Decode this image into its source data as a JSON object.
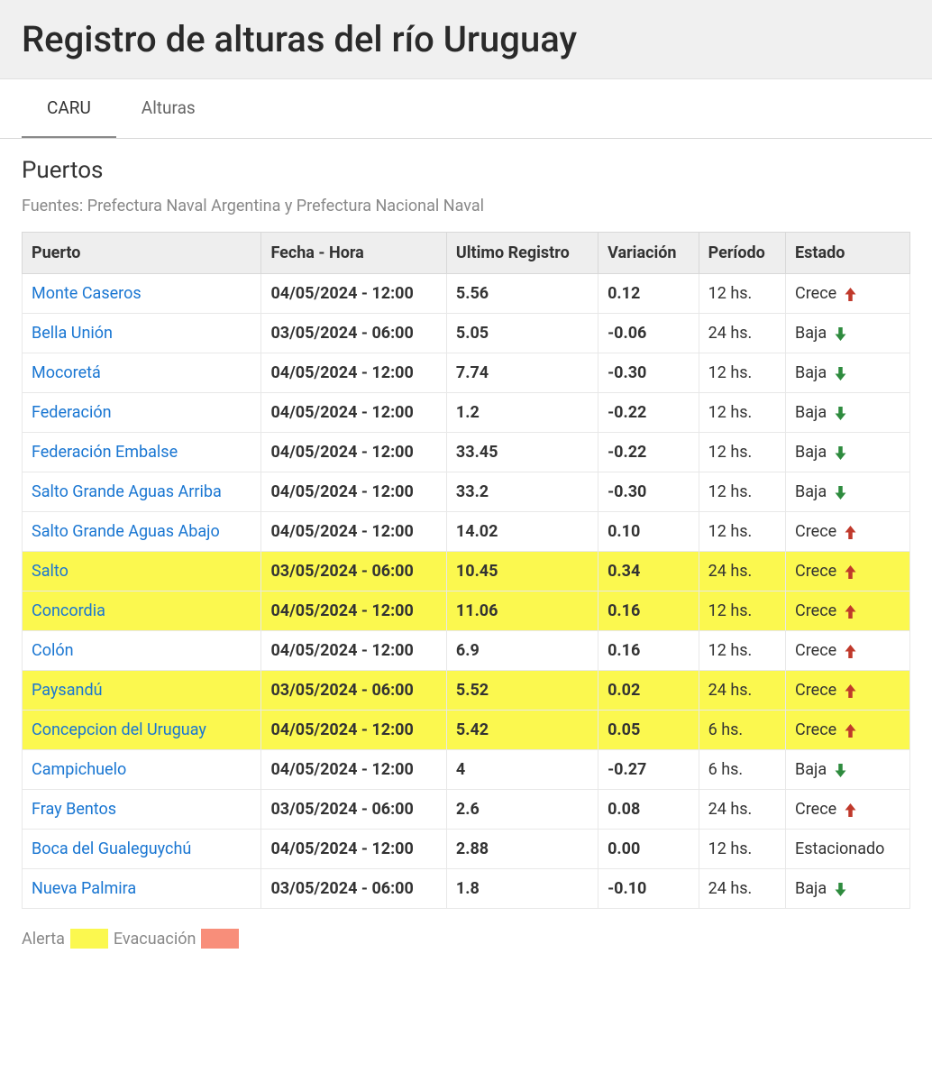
{
  "header": {
    "title": "Registro de alturas del río Uruguay"
  },
  "tabs": [
    {
      "label": "CARU",
      "active": true
    },
    {
      "label": "Alturas",
      "active": false
    }
  ],
  "section": {
    "title": "Puertos",
    "sources": "Fuentes: Prefectura Naval Argentina y Prefectura Nacional Naval"
  },
  "columns": [
    "Puerto",
    "Fecha - Hora",
    "Ultimo Registro",
    "Variación",
    "Período",
    "Estado"
  ],
  "estados": {
    "crece": {
      "label": "Crece",
      "icon": "arrow-up",
      "color": "#c0392b"
    },
    "baja": {
      "label": "Baja",
      "icon": "arrow-down",
      "color": "#2e8b3e"
    },
    "estacionado": {
      "label": "Estacionado",
      "icon": "",
      "color": ""
    }
  },
  "rows": [
    {
      "puerto": "Monte Caseros",
      "fecha": "04/05/2024 - 12:00",
      "registro": "5.56",
      "variacion": "0.12",
      "periodo": "12 hs.",
      "estado": "crece",
      "status": ""
    },
    {
      "puerto": "Bella Unión",
      "fecha": "03/05/2024 - 06:00",
      "registro": "5.05",
      "variacion": "-0.06",
      "periodo": "24 hs.",
      "estado": "baja",
      "status": ""
    },
    {
      "puerto": "Mocoretá",
      "fecha": "04/05/2024 - 12:00",
      "registro": "7.74",
      "variacion": "-0.30",
      "periodo": "12 hs.",
      "estado": "baja",
      "status": ""
    },
    {
      "puerto": "Federación",
      "fecha": "04/05/2024 - 12:00",
      "registro": "1.2",
      "variacion": "-0.22",
      "periodo": "12 hs.",
      "estado": "baja",
      "status": ""
    },
    {
      "puerto": "Federación Embalse",
      "fecha": "04/05/2024 - 12:00",
      "registro": "33.45",
      "variacion": "-0.22",
      "periodo": "12 hs.",
      "estado": "baja",
      "status": ""
    },
    {
      "puerto": "Salto Grande Aguas Arriba",
      "fecha": "04/05/2024 - 12:00",
      "registro": "33.2",
      "variacion": "-0.30",
      "periodo": "12 hs.",
      "estado": "baja",
      "status": ""
    },
    {
      "puerto": "Salto Grande Aguas Abajo",
      "fecha": "04/05/2024 - 12:00",
      "registro": "14.02",
      "variacion": "0.10",
      "periodo": "12 hs.",
      "estado": "crece",
      "status": ""
    },
    {
      "puerto": "Salto",
      "fecha": "03/05/2024 - 06:00",
      "registro": "10.45",
      "variacion": "0.34",
      "periodo": "24 hs.",
      "estado": "crece",
      "status": "alert"
    },
    {
      "puerto": "Concordia",
      "fecha": "04/05/2024 - 12:00",
      "registro": "11.06",
      "variacion": "0.16",
      "periodo": "12 hs.",
      "estado": "crece",
      "status": "alert"
    },
    {
      "puerto": "Colón",
      "fecha": "04/05/2024 - 12:00",
      "registro": "6.9",
      "variacion": "0.16",
      "periodo": "12 hs.",
      "estado": "crece",
      "status": ""
    },
    {
      "puerto": "Paysandú",
      "fecha": "03/05/2024 - 06:00",
      "registro": "5.52",
      "variacion": "0.02",
      "periodo": "24 hs.",
      "estado": "crece",
      "status": "alert"
    },
    {
      "puerto": "Concepcion del Uruguay",
      "fecha": "04/05/2024 - 12:00",
      "registro": "5.42",
      "variacion": "0.05",
      "periodo": "6 hs.",
      "estado": "crece",
      "status": "alert"
    },
    {
      "puerto": "Campichuelo",
      "fecha": "04/05/2024 - 12:00",
      "registro": "4",
      "variacion": "-0.27",
      "periodo": "6 hs.",
      "estado": "baja",
      "status": ""
    },
    {
      "puerto": "Fray Bentos",
      "fecha": "03/05/2024 - 06:00",
      "registro": "2.6",
      "variacion": "0.08",
      "periodo": "24 hs.",
      "estado": "crece",
      "status": ""
    },
    {
      "puerto": "Boca del Gualeguychú",
      "fecha": "04/05/2024 - 12:00",
      "registro": "2.88",
      "variacion": "0.00",
      "periodo": "12 hs.",
      "estado": "estacionado",
      "status": ""
    },
    {
      "puerto": "Nueva Palmira",
      "fecha": "03/05/2024 - 06:00",
      "registro": "1.8",
      "variacion": "-0.10",
      "periodo": "24 hs.",
      "estado": "baja",
      "status": ""
    }
  ],
  "legend": {
    "alerta": "Alerta",
    "evacuacion": "Evacuación"
  },
  "colors": {
    "alert_bg": "#fbf84f",
    "evac_bg": "#f88e7a",
    "link": "#1976d2"
  }
}
